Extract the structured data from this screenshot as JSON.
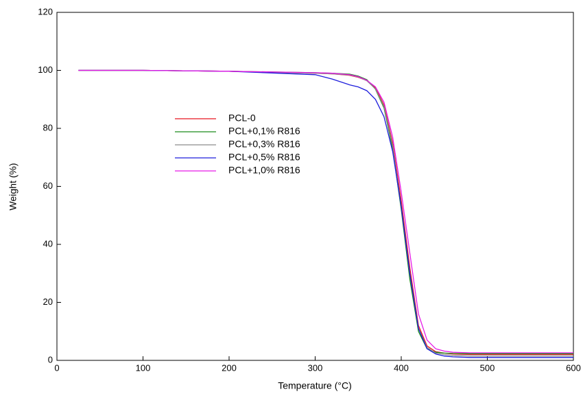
{
  "chart_data": {
    "type": "line",
    "x_label": "Temperature (°C)",
    "y_label": "Weight (%)",
    "x": [
      25,
      100,
      200,
      300,
      320,
      340,
      350,
      360,
      370,
      380,
      390,
      400,
      410,
      420,
      430,
      440,
      450,
      460,
      480,
      500,
      600
    ],
    "series": [
      {
        "name": "PCL-0",
        "color": "#e8141e",
        "values": [
          100,
          100,
          99.7,
          99,
          98.8,
          98.3,
          97.6,
          96.5,
          94,
          88,
          75,
          55,
          32,
          12,
          5,
          3,
          2.5,
          2.2,
          2,
          2,
          2
        ]
      },
      {
        "name": "PCL+0,1% R816",
        "color": "#1a8a1a",
        "values": [
          100,
          100,
          99.7,
          99.2,
          99,
          98.7,
          98,
          96.8,
          93.5,
          87,
          73,
          52,
          28,
          10,
          4,
          2.8,
          2.5,
          2.4,
          2.3,
          2.3,
          2.3
        ]
      },
      {
        "name": "PCL+0,3% R816",
        "color": "#8c8c8c",
        "values": [
          100,
          100,
          99.7,
          99,
          98.8,
          98.4,
          97.7,
          96.4,
          93.6,
          87.5,
          74,
          53,
          30,
          11,
          4.5,
          2.5,
          2,
          1.7,
          1.5,
          1.5,
          1.5
        ]
      },
      {
        "name": "PCL+0,5% R816",
        "color": "#1c1cdc",
        "values": [
          100,
          100,
          99.7,
          98.5,
          97,
          95,
          94.3,
          93,
          90,
          84,
          72,
          53,
          30,
          11,
          4,
          2.2,
          1.5,
          1.2,
          1,
          1,
          1
        ]
      },
      {
        "name": "PCL+1,0% R816",
        "color": "#e619e6",
        "values": [
          100,
          100,
          99.7,
          99.2,
          99,
          98.5,
          97.8,
          96.6,
          94.3,
          89,
          77,
          58,
          37,
          16,
          7,
          4,
          3.2,
          2.8,
          2.6,
          2.6,
          2.6
        ]
      }
    ],
    "xlim": [
      0,
      600
    ],
    "xticks": [
      0,
      100,
      200,
      300,
      400,
      500,
      600
    ],
    "ylim": [
      0,
      120
    ],
    "yticks": [
      0,
      20,
      40,
      60,
      80,
      100,
      120
    ]
  }
}
